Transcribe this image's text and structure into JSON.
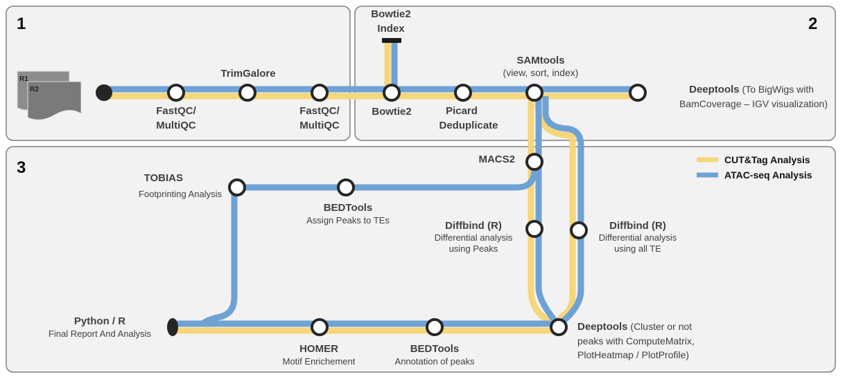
{
  "colors": {
    "cut_tag": "#f5d67b",
    "atac_seq": "#6fa2d4",
    "panel_fill": "#f2f2f2",
    "panel_stroke": "#7f7f7f",
    "node_stroke": "#262626"
  },
  "panels": {
    "p1": {
      "number": "1"
    },
    "p2": {
      "number": "2"
    },
    "p3": {
      "number": "3"
    }
  },
  "input_files": {
    "r1": "R1",
    "r2": "R2"
  },
  "legend": {
    "cut_tag": "CUT&Tag Analysis",
    "atac_seq": "ATAC-seq Analysis"
  },
  "steps": {
    "trimgalore": {
      "title": "TrimGalore"
    },
    "fastqc1": {
      "line1": "FastQC/",
      "line2": "MultiQC"
    },
    "fastqc2": {
      "line1": "FastQC/",
      "line2": "MultiQC"
    },
    "bowtie2_index": {
      "line1": "Bowtie2",
      "line2": "Index"
    },
    "bowtie2": {
      "title": "Bowtie2"
    },
    "picard": {
      "line1": "Picard",
      "line2": "Deduplicate"
    },
    "samtools": {
      "title": "SAMtools",
      "subtitle": "(view, sort, index)"
    },
    "deeptools_bw": {
      "title": "Deeptools",
      "desc1": " (To BigWigs with",
      "desc2": "BamCoverage  – IGV visualization)"
    },
    "macs2": {
      "title": "MACS2"
    },
    "tobias": {
      "title": "TOBIAS",
      "subtitle": "Footprinting Analysis"
    },
    "bedtools_te": {
      "title": "BEDTools",
      "subtitle": "Assign Peaks to TEs"
    },
    "diffbind_peaks": {
      "title": "Diffbind  (R)",
      "sub1": "Differential analysis",
      "sub2": "using Peaks"
    },
    "diffbind_te": {
      "title": "Diffbind  (R)",
      "sub1": "Differential analysis",
      "sub2": "using all TE"
    },
    "python_r": {
      "title": "Python / R",
      "subtitle": "Final Report And Analysis"
    },
    "homer": {
      "title": "HOMER",
      "subtitle": "Motif Enrichement"
    },
    "bedtools_annot": {
      "title": "BEDTools",
      "subtitle": "Annotation of peaks"
    },
    "deeptools_cluster": {
      "title": "Deeptools",
      "desc1": " (Cluster or not",
      "desc2": "peaks with ComputeMatrix,",
      "desc3": "PlotHeatmap  / PlotProfile)"
    }
  }
}
